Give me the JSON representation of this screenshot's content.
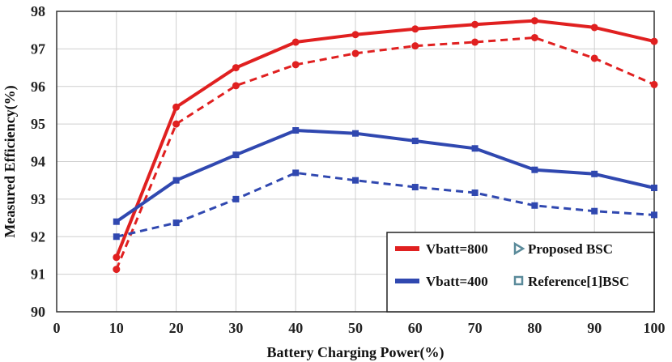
{
  "chart_data": {
    "type": "line",
    "title": "",
    "xlabel": "Battery Charging Power(%)",
    "ylabel": "Measured Efficiency(%)",
    "xlim": [
      0,
      100
    ],
    "ylim": [
      90,
      98
    ],
    "xticks": [
      0,
      10,
      20,
      30,
      40,
      50,
      60,
      70,
      80,
      90,
      100
    ],
    "yticks": [
      90,
      91,
      92,
      93,
      94,
      95,
      96,
      97,
      98
    ],
    "grid": true,
    "legend_position": "bottom-right",
    "x": [
      10,
      20,
      30,
      40,
      50,
      60,
      70,
      80,
      90,
      100
    ],
    "series": [
      {
        "name": "Vbatt=800",
        "design": "Proposed BSC",
        "color": "#e02020",
        "dash": "solid",
        "marker": "circle",
        "values": [
          91.45,
          95.45,
          96.5,
          97.18,
          97.38,
          97.53,
          97.65,
          97.75,
          97.57,
          97.2
        ]
      },
      {
        "name": "Vbatt=800",
        "design": "Reference[1]BSC",
        "color": "#e02020",
        "dash": "dashed",
        "marker": "circle",
        "values": [
          91.13,
          95.0,
          96.02,
          96.58,
          96.88,
          97.08,
          97.18,
          97.3,
          96.75,
          96.05
        ]
      },
      {
        "name": "Vbatt=400",
        "design": "Proposed BSC",
        "color": "#3048b0",
        "dash": "solid",
        "marker": "square",
        "values": [
          92.4,
          93.5,
          94.18,
          94.83,
          94.75,
          94.55,
          94.35,
          93.78,
          93.67,
          93.3
        ]
      },
      {
        "name": "Vbatt=400",
        "design": "Reference[1]BSC",
        "color": "#3048b0",
        "dash": "dashed",
        "marker": "square",
        "values": [
          92.0,
          92.37,
          93.0,
          93.7,
          93.5,
          93.32,
          93.17,
          92.83,
          92.68,
          92.58
        ]
      }
    ],
    "legend": {
      "items": [
        {
          "label": "Vbatt=800",
          "kind": "line",
          "color": "#e02020"
        },
        {
          "label": "Proposed BSC",
          "kind": "triangle-marker",
          "color": "#5a8a9a"
        },
        {
          "label": "Vbatt=400",
          "kind": "line",
          "color": "#3048b0"
        },
        {
          "label": "Reference[1]BSC",
          "kind": "square-marker",
          "color": "#5a8a9a"
        }
      ]
    }
  }
}
